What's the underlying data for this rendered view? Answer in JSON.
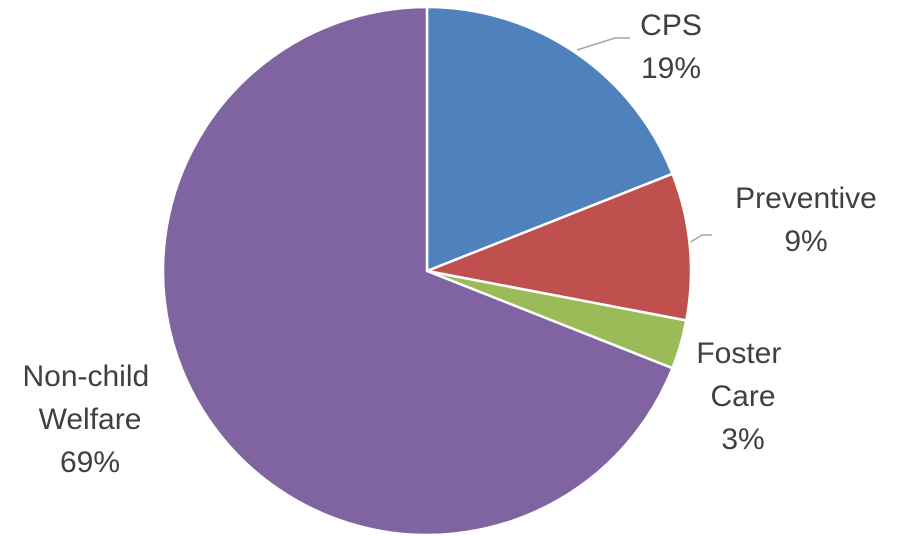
{
  "chart_data": {
    "type": "pie",
    "categories": [
      "CPS",
      "Preventive",
      "Foster Care",
      "Non-child Welfare"
    ],
    "values": [
      19,
      9,
      3,
      69
    ],
    "value_labels": [
      "19%",
      "9%",
      "3%",
      "69%"
    ],
    "colors": [
      "#4f81bd",
      "#c0504d",
      "#9bbb59",
      "#8064a2"
    ]
  }
}
